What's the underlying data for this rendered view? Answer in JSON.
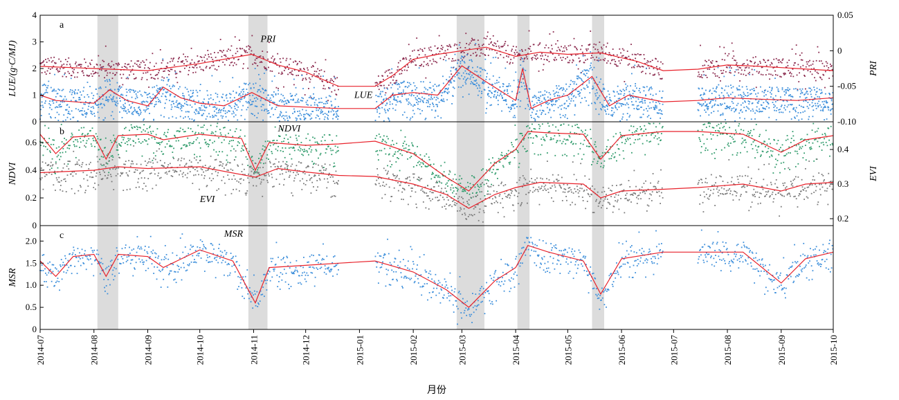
{
  "chart_data": {
    "type": "scatter",
    "x_axis": {
      "label": "月份",
      "range": [
        "2014-07-01",
        "2015-10-01"
      ],
      "ticks": [
        "2014-07",
        "2014-08",
        "2014-09",
        "2014-10",
        "2014-11",
        "2014-12",
        "2015-01",
        "2015-02",
        "2015-03",
        "2015-04",
        "2015-05",
        "2015-06",
        "2015-07",
        "2015-08",
        "2015-09",
        "2015-10"
      ]
    },
    "shaded_periods": [
      [
        "2014-08-03",
        "2014-08-15"
      ],
      [
        "2014-10-29",
        "2014-11-09"
      ],
      [
        "2015-02-26",
        "2015-03-14"
      ],
      [
        "2015-04-02",
        "2015-04-09"
      ],
      [
        "2015-05-15",
        "2015-05-22"
      ]
    ],
    "data_gaps": [
      [
        "2014-12-20",
        "2015-01-10"
      ],
      [
        "2015-06-25",
        "2015-07-15"
      ]
    ],
    "panels": [
      {
        "letter": "a",
        "left_axis": {
          "label": "LUE/(g·C/MJ)",
          "range": [
            0,
            4
          ],
          "ticks": [
            "0",
            "1",
            "2",
            "3",
            "4"
          ]
        },
        "right_axis": {
          "label": "PRI",
          "range": [
            -0.1,
            0.05
          ],
          "ticks": [
            "-0.10",
            "-0.05",
            "0",
            "0.05"
          ]
        },
        "series": [
          {
            "name": "PRI",
            "axis": "right",
            "point_color": "#8b2a4e",
            "line_color": "#e8212a",
            "trend": [
              [
                "2014-07-01",
                -0.022
              ],
              [
                "2014-08-01",
                -0.025
              ],
              [
                "2014-09-01",
                -0.028
              ],
              [
                "2014-10-01",
                -0.018
              ],
              [
                "2014-10-31",
                -0.005
              ],
              [
                "2014-11-15",
                -0.02
              ],
              [
                "2014-12-01",
                -0.03
              ],
              [
                "2014-12-15",
                -0.045
              ],
              [
                "2014-12-20",
                -0.05
              ],
              [
                "2015-01-10",
                -0.05
              ],
              [
                "2015-01-20",
                -0.035
              ],
              [
                "2015-02-01",
                -0.012
              ],
              [
                "2015-02-15",
                -0.005
              ],
              [
                "2015-03-01",
                0.0
              ],
              [
                "2015-03-15",
                0.005
              ],
              [
                "2015-04-01",
                -0.008
              ],
              [
                "2015-04-15",
                -0.002
              ],
              [
                "2015-05-01",
                -0.005
              ],
              [
                "2015-05-20",
                -0.003
              ],
              [
                "2015-06-10",
                -0.015
              ],
              [
                "2015-06-25",
                -0.028
              ],
              [
                "2015-07-15",
                -0.026
              ],
              [
                "2015-08-01",
                -0.02
              ],
              [
                "2015-08-20",
                -0.022
              ],
              [
                "2015-09-10",
                -0.025
              ],
              [
                "2015-10-01",
                -0.028
              ]
            ]
          },
          {
            "name": "LUE",
            "axis": "left",
            "point_color": "#3d8fdb",
            "line_color": "#e8212a",
            "trend": [
              [
                "2014-07-01",
                1.0
              ],
              [
                "2014-07-10",
                0.8
              ],
              [
                "2014-08-01",
                0.7
              ],
              [
                "2014-08-10",
                1.2
              ],
              [
                "2014-08-20",
                0.8
              ],
              [
                "2014-09-01",
                0.6
              ],
              [
                "2014-09-10",
                1.3
              ],
              [
                "2014-09-20",
                0.9
              ],
              [
                "2014-10-01",
                0.7
              ],
              [
                "2014-10-15",
                0.6
              ],
              [
                "2014-10-31",
                1.1
              ],
              [
                "2014-11-15",
                0.6
              ],
              [
                "2014-12-01",
                0.55
              ],
              [
                "2014-12-20",
                0.5
              ],
              [
                "2015-01-10",
                0.5
              ],
              [
                "2015-01-20",
                1.0
              ],
              [
                "2015-02-01",
                1.1
              ],
              [
                "2015-02-15",
                1.0
              ],
              [
                "2015-03-01",
                2.1
              ],
              [
                "2015-03-15",
                1.5
              ],
              [
                "2015-04-01",
                0.8
              ],
              [
                "2015-04-05",
                2.0
              ],
              [
                "2015-04-10",
                0.5
              ],
              [
                "2015-04-20",
                0.8
              ],
              [
                "2015-05-01",
                1.0
              ],
              [
                "2015-05-15",
                1.7
              ],
              [
                "2015-05-25",
                0.6
              ],
              [
                "2015-06-05",
                1.0
              ],
              [
                "2015-06-25",
                0.75
              ],
              [
                "2015-07-15",
                0.8
              ],
              [
                "2015-08-01",
                0.9
              ],
              [
                "2015-08-20",
                0.85
              ],
              [
                "2015-09-10",
                0.8
              ],
              [
                "2015-10-01",
                0.9
              ]
            ]
          }
        ],
        "label_positions": {
          "PRI": [
            "2014-11-05",
            3.0
          ],
          "LUE": [
            "2014-12-29",
            0.9
          ]
        }
      },
      {
        "letter": "b",
        "left_axis": {
          "label": "NDVI",
          "range": [
            0,
            0.75
          ],
          "ticks": [
            "0",
            "0.2",
            "0.4",
            "0.6"
          ]
        },
        "right_axis": {
          "label": "EVI",
          "range": [
            0.18,
            0.48
          ],
          "ticks": [
            "0.2",
            "0.3",
            "0.4"
          ]
        },
        "series": [
          {
            "name": "NDVI",
            "axis": "left",
            "point_color": "#2e9a6a",
            "line_color": "#e8212a",
            "trend": [
              [
                "2014-07-01",
                0.66
              ],
              [
                "2014-07-10",
                0.52
              ],
              [
                "2014-07-20",
                0.64
              ],
              [
                "2014-08-01",
                0.65
              ],
              [
                "2014-08-08",
                0.48
              ],
              [
                "2014-08-15",
                0.65
              ],
              [
                "2014-09-01",
                0.66
              ],
              [
                "2014-09-10",
                0.62
              ],
              [
                "2014-10-01",
                0.66
              ],
              [
                "2014-10-25",
                0.63
              ],
              [
                "2014-11-02",
                0.4
              ],
              [
                "2014-11-10",
                0.6
              ],
              [
                "2014-12-01",
                0.58
              ],
              [
                "2014-12-20",
                0.59
              ],
              [
                "2015-01-10",
                0.61
              ],
              [
                "2015-02-01",
                0.52
              ],
              [
                "2015-02-20",
                0.35
              ],
              [
                "2015-03-05",
                0.25
              ],
              [
                "2015-03-20",
                0.45
              ],
              [
                "2015-04-01",
                0.55
              ],
              [
                "2015-04-08",
                0.68
              ],
              [
                "2015-04-20",
                0.67
              ],
              [
                "2015-05-10",
                0.66
              ],
              [
                "2015-05-20",
                0.48
              ],
              [
                "2015-06-01",
                0.65
              ],
              [
                "2015-06-25",
                0.68
              ],
              [
                "2015-07-15",
                0.68
              ],
              [
                "2015-08-10",
                0.66
              ],
              [
                "2015-09-01",
                0.53
              ],
              [
                "2015-09-15",
                0.62
              ],
              [
                "2015-10-01",
                0.65
              ]
            ]
          },
          {
            "name": "EVI",
            "axis": "right",
            "point_color": "#7a7a7a",
            "line_color": "#e8212a",
            "trend": [
              [
                "2014-07-01",
                0.333
              ],
              [
                "2014-08-01",
                0.34
              ],
              [
                "2014-08-15",
                0.35
              ],
              [
                "2014-09-01",
                0.345
              ],
              [
                "2014-10-01",
                0.35
              ],
              [
                "2014-11-02",
                0.32
              ],
              [
                "2014-11-15",
                0.345
              ],
              [
                "2014-12-01",
                0.335
              ],
              [
                "2014-12-20",
                0.325
              ],
              [
                "2015-01-10",
                0.322
              ],
              [
                "2015-02-01",
                0.3
              ],
              [
                "2015-02-20",
                0.27
              ],
              [
                "2015-03-05",
                0.23
              ],
              [
                "2015-03-20",
                0.27
              ],
              [
                "2015-04-01",
                0.29
              ],
              [
                "2015-04-15",
                0.305
              ],
              [
                "2015-05-10",
                0.3
              ],
              [
                "2015-05-20",
                0.26
              ],
              [
                "2015-06-01",
                0.28
              ],
              [
                "2015-06-25",
                0.285
              ],
              [
                "2015-07-15",
                0.29
              ],
              [
                "2015-08-10",
                0.3
              ],
              [
                "2015-09-01",
                0.28
              ],
              [
                "2015-09-15",
                0.3
              ],
              [
                "2015-10-01",
                0.305
              ]
            ]
          }
        ],
        "label_positions": {
          "NDVI": [
            "2014-11-15",
            0.68
          ],
          "EVI": [
            "2014-10-01",
            0.17
          ]
        }
      },
      {
        "letter": "c",
        "left_axis": {
          "label": "MSR",
          "range": [
            0,
            2.35
          ],
          "ticks": [
            "0",
            "0.5",
            "1.0",
            "1.5",
            "2.0"
          ]
        },
        "series": [
          {
            "name": "MSR",
            "axis": "left",
            "point_color": "#3d8fdb",
            "line_color": "#e8212a",
            "trend": [
              [
                "2014-07-01",
                1.55
              ],
              [
                "2014-07-10",
                1.2
              ],
              [
                "2014-07-20",
                1.65
              ],
              [
                "2014-08-01",
                1.7
              ],
              [
                "2014-08-08",
                1.2
              ],
              [
                "2014-08-15",
                1.7
              ],
              [
                "2014-09-01",
                1.65
              ],
              [
                "2014-09-10",
                1.4
              ],
              [
                "2014-10-01",
                1.8
              ],
              [
                "2014-10-20",
                1.55
              ],
              [
                "2014-11-02",
                0.6
              ],
              [
                "2014-11-10",
                1.4
              ],
              [
                "2014-12-01",
                1.45
              ],
              [
                "2014-12-20",
                1.5
              ],
              [
                "2015-01-10",
                1.55
              ],
              [
                "2015-02-01",
                1.3
              ],
              [
                "2015-02-20",
                0.9
              ],
              [
                "2015-03-05",
                0.5
              ],
              [
                "2015-03-20",
                1.1
              ],
              [
                "2015-04-01",
                1.4
              ],
              [
                "2015-04-08",
                1.9
              ],
              [
                "2015-04-20",
                1.75
              ],
              [
                "2015-05-10",
                1.55
              ],
              [
                "2015-05-20",
                0.8
              ],
              [
                "2015-06-01",
                1.6
              ],
              [
                "2015-06-25",
                1.75
              ],
              [
                "2015-07-15",
                1.75
              ],
              [
                "2015-08-10",
                1.75
              ],
              [
                "2015-09-01",
                1.05
              ],
              [
                "2015-09-15",
                1.6
              ],
              [
                "2015-10-01",
                1.75
              ]
            ]
          }
        ],
        "label_positions": {
          "MSR": [
            "2014-10-15",
            2.1
          ]
        }
      }
    ]
  }
}
